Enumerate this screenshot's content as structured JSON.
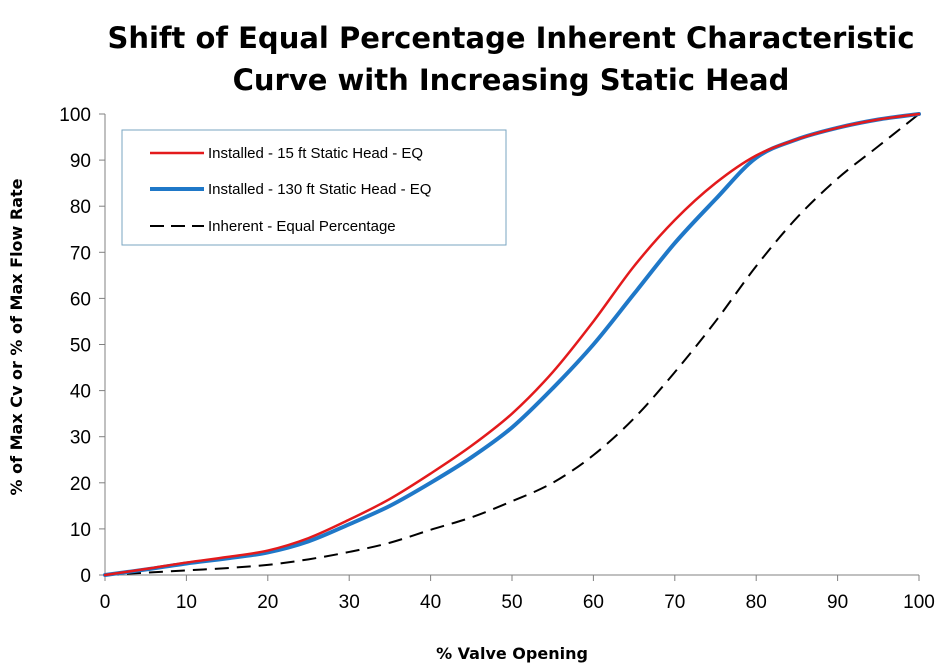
{
  "chart_data": {
    "type": "line",
    "title_lines": [
      "Shift of Equal Percentage Inherent Characteristic",
      "Curve with Increasing Static Head"
    ],
    "xlabel": "% Valve Opening",
    "ylabel": "% of Max Cv or % of Max Flow Rate",
    "xlim": [
      0,
      100
    ],
    "ylim": [
      0,
      100
    ],
    "x_ticks": [
      "0",
      "10",
      "20",
      "30",
      "40",
      "50",
      "60",
      "70",
      "80",
      "90",
      "100"
    ],
    "y_ticks": [
      "0",
      "10",
      "20",
      "30",
      "40",
      "50",
      "60",
      "70",
      "80",
      "90",
      "100"
    ],
    "grid": false,
    "legend_position": "top-left",
    "x": [
      0,
      5,
      10,
      15,
      20,
      25,
      30,
      35,
      40,
      45,
      50,
      55,
      60,
      65,
      70,
      75,
      80,
      85,
      90,
      95,
      100
    ],
    "series": [
      {
        "name": "Installed - 15 ft Static Head - EQ",
        "color": "#e31a1c",
        "style": "solid",
        "values": [
          0,
          1.3,
          2.7,
          3.9,
          5.3,
          8.0,
          12.0,
          16.5,
          22.0,
          28.0,
          35.0,
          44.0,
          55.0,
          67.0,
          77.0,
          85.0,
          91.0,
          94.5,
          97.0,
          98.8,
          100
        ]
      },
      {
        "name": "Installed - 130 ft Static Head - EQ",
        "color": "#1f78c8",
        "style": "solid",
        "values": [
          0,
          1.2,
          2.5,
          3.6,
          4.9,
          7.3,
          11.0,
          15.0,
          20.0,
          25.5,
          32.0,
          40.5,
          50.0,
          61.0,
          72.0,
          81.5,
          90.5,
          94.5,
          97.0,
          98.8,
          100
        ]
      },
      {
        "name": "Inherent - Equal Percentage",
        "color": "#000000",
        "style": "dashed",
        "values": [
          0,
          0.5,
          1.0,
          1.5,
          2.2,
          3.4,
          5.0,
          7.0,
          9.8,
          12.5,
          16.0,
          20.0,
          26.0,
          34.0,
          44.0,
          55.0,
          67.0,
          77.5,
          86.0,
          93.0,
          100
        ]
      }
    ]
  }
}
